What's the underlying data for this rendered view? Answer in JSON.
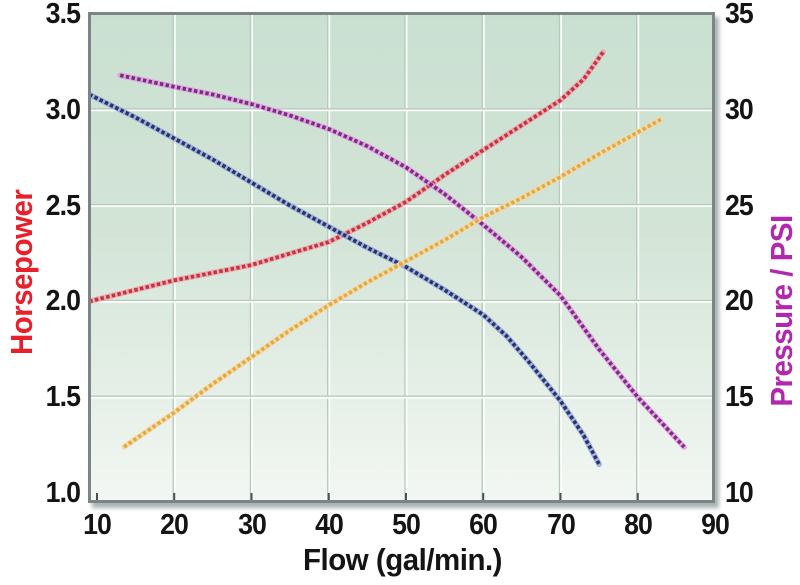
{
  "chart_data": {
    "type": "line",
    "title": "",
    "xlabel": "Flow (gal/min.)",
    "ylabel_left": "Horsepower",
    "ylabel_right": "Pressure / PSI",
    "x_ticks": [
      10,
      20,
      30,
      40,
      50,
      60,
      70,
      80,
      90
    ],
    "left_ticks": [
      "3.5",
      "3.0",
      "2.5",
      "2.0",
      "1.5",
      "1.0"
    ],
    "right_ticks": [
      "35",
      "30",
      "25",
      "20",
      "15",
      "10"
    ],
    "xlim": [
      10,
      90
    ],
    "left_ylim": [
      1.0,
      3.5
    ],
    "right_ylim": [
      10,
      35
    ],
    "grid": true,
    "legend": "none",
    "series": [
      {
        "name": "horsepower-red-curve",
        "axis": "left",
        "color": "#c9303c",
        "halo": "#e9a3ab",
        "points": [
          [
            9,
            2.0
          ],
          [
            15,
            2.06
          ],
          [
            20,
            2.11
          ],
          [
            25,
            2.15
          ],
          [
            30,
            2.19
          ],
          [
            35,
            2.25
          ],
          [
            40,
            2.31
          ],
          [
            45,
            2.41
          ],
          [
            50,
            2.52
          ],
          [
            55,
            2.66
          ],
          [
            60,
            2.79
          ],
          [
            65,
            2.92
          ],
          [
            70,
            3.05
          ],
          [
            73,
            3.16
          ],
          [
            75.5,
            3.3
          ]
        ]
      },
      {
        "name": "blue-curve",
        "axis": "left",
        "color": "#243271",
        "halo": "#98a7d1",
        "points": [
          [
            9,
            3.08
          ],
          [
            15,
            2.96
          ],
          [
            20,
            2.85
          ],
          [
            25,
            2.74
          ],
          [
            30,
            2.62
          ],
          [
            35,
            2.5
          ],
          [
            40,
            2.39
          ],
          [
            45,
            2.28
          ],
          [
            50,
            2.18
          ],
          [
            55,
            2.06
          ],
          [
            60,
            1.93
          ],
          [
            63,
            1.82
          ],
          [
            66,
            1.68
          ],
          [
            70,
            1.48
          ],
          [
            73,
            1.3
          ],
          [
            75,
            1.15
          ]
        ]
      },
      {
        "name": "pressure-purple-curve",
        "axis": "right",
        "color": "#7b2a86",
        "halo": "#dd9ad8",
        "points": [
          [
            13,
            31.8
          ],
          [
            20,
            31.2
          ],
          [
            25,
            30.8
          ],
          [
            30,
            30.3
          ],
          [
            35,
            29.7
          ],
          [
            40,
            29.0
          ],
          [
            45,
            28.1
          ],
          [
            50,
            27.0
          ],
          [
            55,
            25.6
          ],
          [
            60,
            24.0
          ],
          [
            65,
            22.3
          ],
          [
            70,
            20.3
          ],
          [
            75,
            17.5
          ],
          [
            80,
            15.0
          ],
          [
            86,
            12.4
          ]
        ]
      },
      {
        "name": "orange-curve",
        "axis": "right",
        "color": "#e6a83e",
        "halo": "#f2d9a6",
        "points": [
          [
            13.5,
            12.4
          ],
          [
            20,
            14.2
          ],
          [
            25,
            15.7
          ],
          [
            30,
            17.1
          ],
          [
            35,
            18.5
          ],
          [
            40,
            19.8
          ],
          [
            45,
            21.0
          ],
          [
            50,
            22.1
          ],
          [
            55,
            23.2
          ],
          [
            60,
            24.4
          ],
          [
            65,
            25.4
          ],
          [
            70,
            26.5
          ],
          [
            75,
            27.7
          ],
          [
            79,
            28.6
          ],
          [
            83,
            29.5
          ]
        ]
      }
    ]
  },
  "colors": {
    "left_axis_title": "#e8202b",
    "right_axis_title": "#b227ae",
    "plot_border": "#7b8588",
    "gridline_light": "#ffffff",
    "gridline_dark": "#b5cabb",
    "tick_mark": "#4a4f52",
    "background_top": "#c9e0d1",
    "background_bottom": "#f3f7f3"
  }
}
